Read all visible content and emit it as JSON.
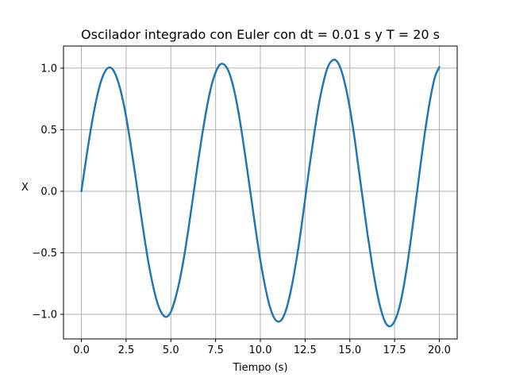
{
  "chart_data": {
    "type": "line",
    "title": "Oscilador integrado con Euler con dt = 0.01 s y T = 20 s",
    "xlabel": "Tiempo (s)",
    "ylabel": "X",
    "xlim": [
      -1.0,
      21.0
    ],
    "ylim": [
      -1.2,
      1.18
    ],
    "grid": true,
    "xticks": [
      0.0,
      2.5,
      5.0,
      7.5,
      10.0,
      12.5,
      15.0,
      17.5,
      20.0
    ],
    "xtick_labels": [
      "0.0",
      "2.5",
      "5.0",
      "7.5",
      "10.0",
      "12.5",
      "15.0",
      "17.5",
      "20.0"
    ],
    "yticks": [
      1.0,
      0.5,
      0.0,
      -0.5,
      -1.0
    ],
    "ytick_labels": [
      "1.0",
      "0.5",
      "0.0",
      "−0.5",
      "−1.0"
    ],
    "series": [
      {
        "color": "#1f77b4",
        "x": [
          0.0,
          0.25,
          0.5,
          0.75,
          1.0,
          1.25,
          1.5,
          1.75,
          2.0,
          2.25,
          2.5,
          2.75,
          3.0,
          3.25,
          3.5,
          3.75,
          4.0,
          4.25,
          4.5,
          4.75,
          5.0,
          5.25,
          5.5,
          5.75,
          6.0,
          6.25,
          6.5,
          6.75,
          7.0,
          7.25,
          7.5,
          7.75,
          8.0,
          8.25,
          8.5,
          8.75,
          9.0,
          9.25,
          9.5,
          9.75,
          10.0,
          10.25,
          10.5,
          10.75,
          11.0,
          11.25,
          11.5,
          11.75,
          12.0,
          12.25,
          12.5,
          12.75,
          13.0,
          13.25,
          13.5,
          13.75,
          14.0,
          14.25,
          14.5,
          14.75,
          15.0,
          15.25,
          15.5,
          15.75,
          16.0,
          16.25,
          16.5,
          16.75,
          17.0,
          17.25,
          17.5,
          17.75,
          18.0,
          18.25,
          18.5,
          18.75,
          19.0,
          19.25,
          19.5,
          19.75,
          20.0
        ],
        "y": [
          0.0,
          0.248,
          0.48,
          0.683,
          0.845,
          0.953,
          1.003,
          0.99,
          0.913,
          0.784,
          0.606,
          0.383,
          0.143,
          -0.11,
          -0.356,
          -0.582,
          -0.766,
          -0.908,
          -0.993,
          -1.021,
          -0.98,
          -0.871,
          -0.719,
          -0.522,
          -0.288,
          -0.035,
          0.22,
          0.459,
          0.672,
          0.848,
          0.966,
          1.03,
          1.027,
          0.966,
          0.843,
          0.665,
          0.442,
          0.193,
          -0.066,
          -0.324,
          -0.56,
          -0.761,
          -0.922,
          -1.023,
          -1.06,
          -1.031,
          -0.933,
          -0.775,
          -0.573,
          -0.336,
          -0.065,
          0.206,
          0.459,
          0.69,
          0.87,
          1.001,
          1.061,
          1.061,
          0.992,
          0.86,
          0.675,
          0.447,
          0.176,
          -0.093,
          -0.36,
          -0.599,
          -0.808,
          -0.968,
          -1.07,
          -1.097,
          -1.056,
          -0.953,
          -0.783,
          -0.558,
          -0.294,
          -0.014,
          0.27,
          0.531,
          0.755,
          0.925,
          1.01
        ]
      }
    ]
  }
}
